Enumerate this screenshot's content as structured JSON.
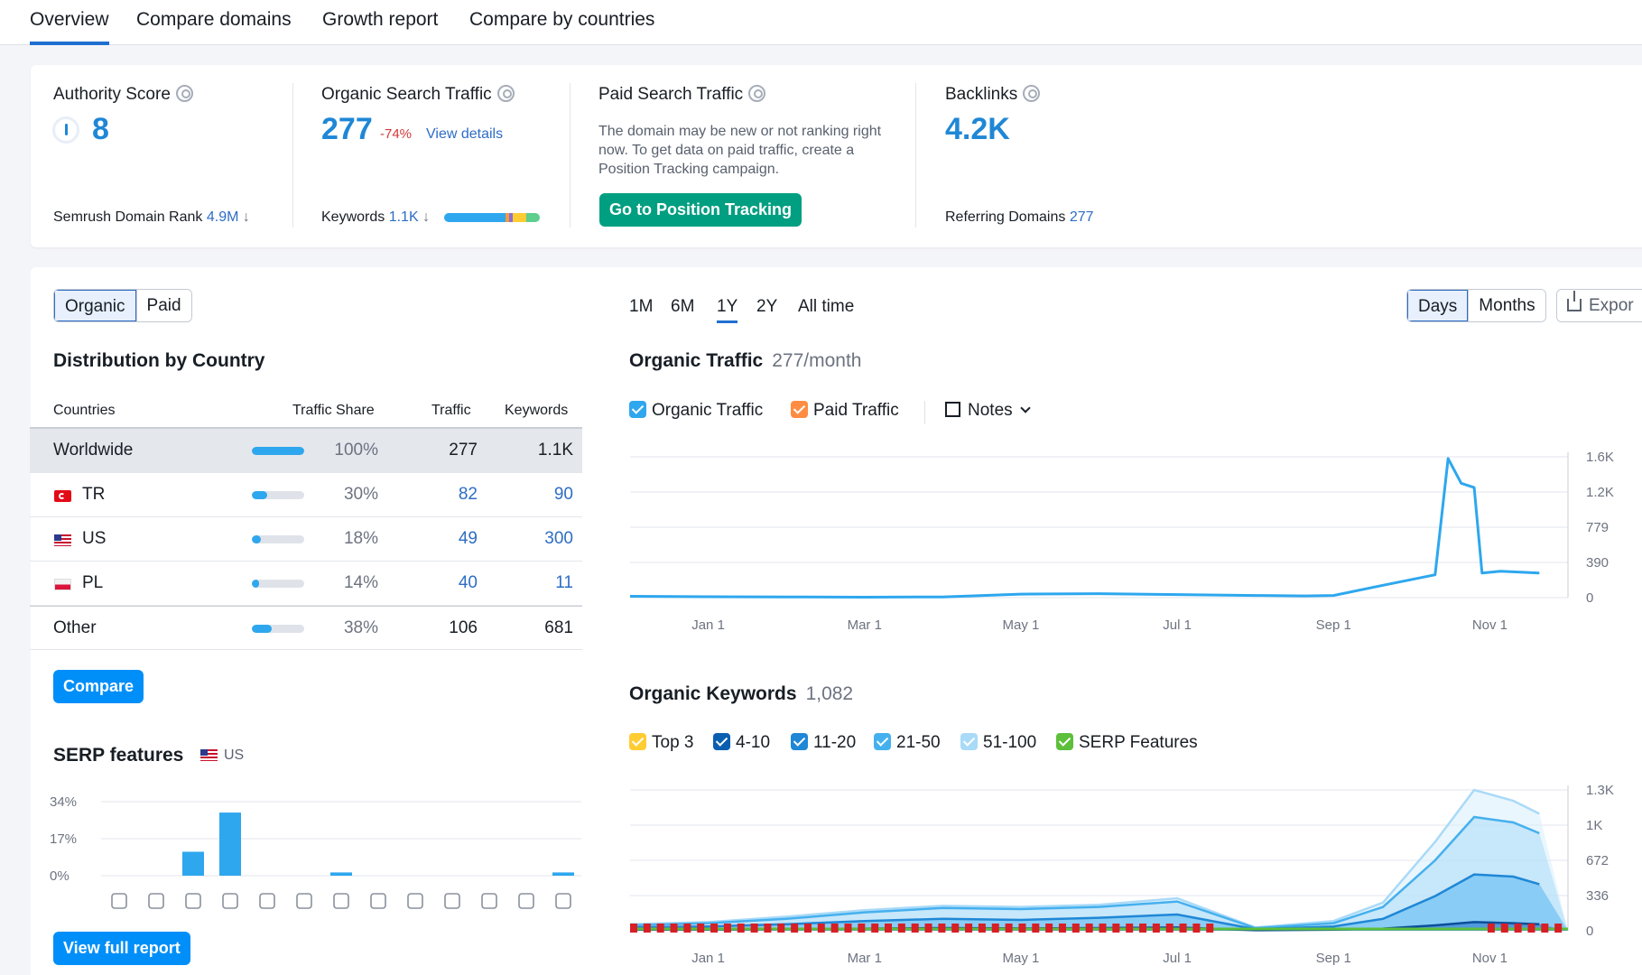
{
  "nav": {
    "tabs": [
      {
        "label": "Overview",
        "active": true
      },
      {
        "label": "Compare domains"
      },
      {
        "label": "Growth report"
      },
      {
        "label": "Compare by countries"
      }
    ]
  },
  "summary": {
    "authority": {
      "title": "Authority Score",
      "value": "8",
      "rank_label": "Semrush Domain Rank",
      "rank_value": "4.9M",
      "rank_trend": "↓"
    },
    "organic": {
      "title": "Organic Search Traffic",
      "value": "277",
      "change": "-74%",
      "link": "View details",
      "kw_label": "Keywords",
      "kw_value": "1.1K",
      "kw_trend": "↓"
    },
    "paid": {
      "title": "Paid Search Traffic",
      "description": "The domain may be new or not ranking right now. To get data on paid traffic, create a Position Tracking campaign.",
      "button": "Go to Position Tracking"
    },
    "backlinks": {
      "title": "Backlinks",
      "value": "4.2K",
      "ref_label": "Referring Domains",
      "ref_value": "277"
    }
  },
  "colors": {
    "accent": "#1f87d6",
    "green": "#009f81",
    "blue_button": "#008ff8",
    "organic": "#2ea7ee",
    "paid": "#ff8c42",
    "negative": "#d43a3a"
  },
  "left": {
    "toggle": [
      "Organic",
      "Paid"
    ],
    "dist_title": "Distribution by Country",
    "headers": {
      "countries": "Countries",
      "share": "Traffic Share",
      "traffic": "Traffic",
      "keywords": "Keywords"
    },
    "rows": [
      {
        "name": "Worldwide",
        "share": "100%",
        "share_value": 100,
        "traffic": "277",
        "keywords": "1.1K",
        "flag": ""
      },
      {
        "name": "TR",
        "share": "30%",
        "share_value": 30,
        "traffic": "82",
        "keywords": "90",
        "flag": "tr-flag-icon"
      },
      {
        "name": "US",
        "share": "18%",
        "share_value": 18,
        "traffic": "49",
        "keywords": "300",
        "flag": "us-flag-icon"
      },
      {
        "name": "PL",
        "share": "14%",
        "share_value": 14,
        "traffic": "40",
        "keywords": "11",
        "flag": "pl-flag-icon"
      },
      {
        "name": "Other",
        "share": "38%",
        "share_value": 38,
        "traffic": "106",
        "keywords": "681",
        "flag": ""
      }
    ],
    "compare_button": "Compare",
    "serp_title": "SERP features",
    "serp_country": "US",
    "view_report": "View full report"
  },
  "right": {
    "periods": [
      {
        "label": "1M"
      },
      {
        "label": "6M"
      },
      {
        "label": "1Y",
        "active": true
      },
      {
        "label": "2Y"
      },
      {
        "label": "All time"
      }
    ],
    "granularity": [
      "Days",
      "Months"
    ],
    "export": "Expor",
    "traffic_title": "Organic Traffic",
    "traffic_sub": "277/month",
    "traffic_legend": [
      {
        "label": "Organic Traffic",
        "color": "#2ea7ee"
      },
      {
        "label": "Paid Traffic",
        "color": "#ff8c42"
      }
    ],
    "notes": "Notes",
    "keywords_title": "Organic Keywords",
    "keywords_sub": "1,082",
    "kw_legend": [
      {
        "label": "Top 3",
        "color": "#ffcc33"
      },
      {
        "label": "4-10",
        "color": "#0b5fb0"
      },
      {
        "label": "11-20",
        "color": "#1f87d6"
      },
      {
        "label": "21-50",
        "color": "#45b0ee"
      },
      {
        "label": "51-100",
        "color": "#a9daf8"
      },
      {
        "label": "SERP Features",
        "color": "#5dbf3b"
      }
    ]
  },
  "chart_data": [
    {
      "type": "line",
      "title": "Organic Traffic",
      "x_ticks": [
        "Jan 1",
        "Mar 1",
        "May 1",
        "Jul 1",
        "Sep 1",
        "Nov 1"
      ],
      "y_ticks": [
        "1.6K",
        "1.2K",
        "779",
        "390",
        "0"
      ],
      "ylim": [
        0,
        1600
      ],
      "series": [
        {
          "name": "Organic Traffic",
          "x": [
            "Dec 1",
            "Jan 1",
            "Feb 1",
            "Mar 1",
            "Apr 1",
            "May 1",
            "Jun 1",
            "Jul 1",
            "Aug 1",
            "Aug 20",
            "Sep 1",
            "Sep 20",
            "Oct 10",
            "Oct 15",
            "Oct 20",
            "Oct 25",
            "Oct 28",
            "Nov 5",
            "Nov 20"
          ],
          "values": [
            15,
            10,
            8,
            5,
            8,
            40,
            45,
            35,
            25,
            20,
            25,
            140,
            260,
            1580,
            1300,
            1250,
            280,
            300,
            280
          ]
        }
      ]
    },
    {
      "type": "area",
      "title": "Organic Keywords",
      "x_ticks": [
        "Jan 1",
        "Mar 1",
        "May 1",
        "Jul 1",
        "Sep 1",
        "Nov 1"
      ],
      "y_ticks": [
        "1.3K",
        "1K",
        "672",
        "336",
        "0"
      ],
      "ylim": [
        0,
        1300
      ],
      "x": [
        "Dec 1",
        "Jan 1",
        "Feb 1",
        "Mar 1",
        "Apr 1",
        "May 1",
        "Jun 1",
        "Jul 1",
        "Aug 1",
        "Sep 1",
        "Sep 20",
        "Oct 10",
        "Oct 25",
        "Nov 10",
        "Nov 20"
      ],
      "series": [
        {
          "name": "51-100",
          "values": [
            60,
            80,
            130,
            190,
            230,
            220,
            240,
            300,
            30,
            90,
            260,
            820,
            1300,
            1200,
            1080
          ]
        },
        {
          "name": "21-50",
          "values": [
            50,
            70,
            110,
            170,
            210,
            200,
            220,
            270,
            25,
            70,
            220,
            650,
            1050,
            1000,
            900
          ]
        },
        {
          "name": "11-20",
          "values": [
            30,
            40,
            60,
            90,
            110,
            100,
            120,
            150,
            15,
            40,
            110,
            320,
            520,
            500,
            430
          ]
        },
        {
          "name": "4-10",
          "values": [
            10,
            12,
            15,
            20,
            25,
            22,
            25,
            30,
            5,
            10,
            20,
            50,
            80,
            70,
            60
          ]
        }
      ]
    },
    {
      "type": "bar",
      "title": "SERP features",
      "y_ticks": [
        "34%",
        "17%",
        "0%"
      ],
      "ylim": [
        0,
        34
      ],
      "categories": [
        "crown-icon",
        "link-icon",
        "star-icon",
        "image-icon",
        "video-icon",
        "video-carousel-icon",
        "faq-icon",
        "local-pack-icon",
        "knowledge-icon",
        "news-icon",
        "jobs-icon",
        "x-icon",
        "image-pack-icon"
      ],
      "values": [
        0,
        0,
        11,
        29,
        0,
        0,
        1.5,
        0,
        0,
        0,
        0,
        0,
        1.5
      ]
    }
  ]
}
